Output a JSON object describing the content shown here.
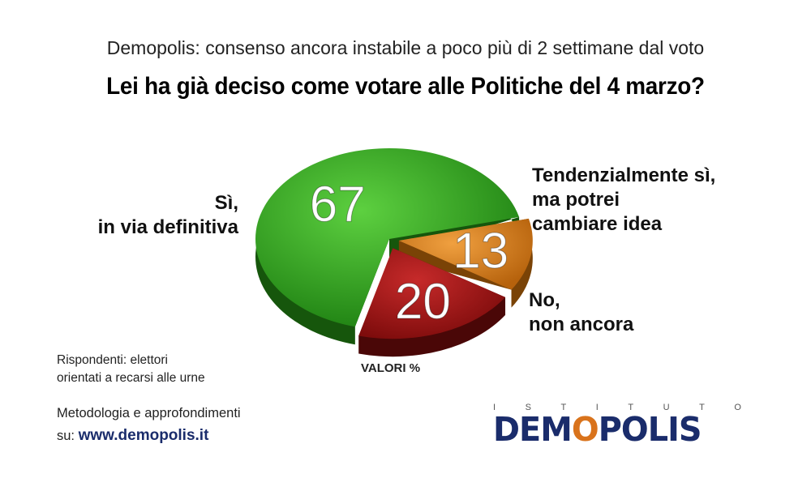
{
  "subtitle": "Demopolis: consenso ancora instabile a poco più di 2 settimane dal voto",
  "title": "Lei ha già deciso come votare alle Politiche del 4 marzo?",
  "chart_data": {
    "type": "pie",
    "unit_label": "VALORI %",
    "categories": [
      [
        "Sì,",
        "in via definitiva"
      ],
      [
        "Tendenzialmente sì,",
        "ma potrei",
        "cambiare idea"
      ],
      [
        "No,",
        "non ancora"
      ]
    ],
    "values": [
      67,
      13,
      20
    ],
    "colors": [
      "#2d9a1c",
      "#d27b14",
      "#a01616"
    ],
    "dark_colors": [
      "#16560c",
      "#7a4306",
      "#4a0707"
    ]
  },
  "notes": {
    "respondents": [
      "Rispondenti: elettori",
      "orientati a recarsi alle urne"
    ],
    "methodology": "Metodologia e approfondimenti",
    "site_prefix": "su:",
    "site": "www.demopolis.it"
  },
  "logo": {
    "top": [
      "I",
      "S",
      "T",
      "I",
      "T",
      "U",
      "T",
      "O"
    ],
    "pre": "DEM",
    "mid": "O",
    "post": "POLIS"
  }
}
